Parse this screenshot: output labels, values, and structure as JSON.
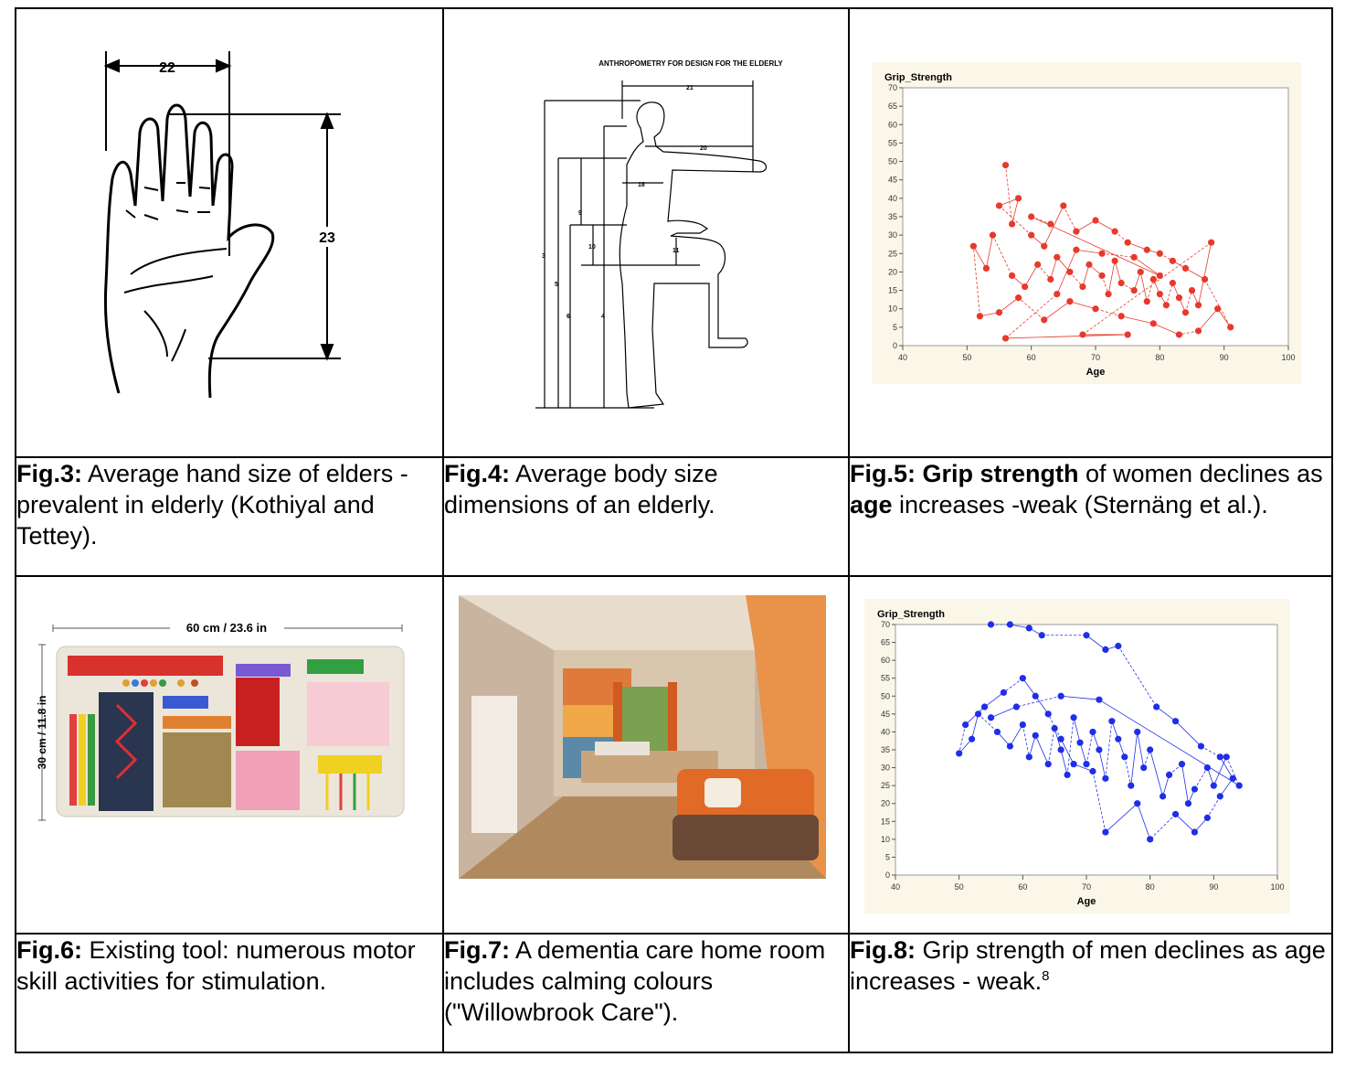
{
  "cells": {
    "fig3": {
      "dim_width": "22",
      "dim_height": "23"
    },
    "fig4": {
      "title": "ANTHROPOMETRY FOR DESIGN FOR THE ELDERLY",
      "labels": [
        "21",
        "20",
        "18",
        "9",
        "10",
        "11",
        "3",
        "5",
        "6",
        "4"
      ]
    },
    "fig6": {
      "width_label": "60 cm / 23.6 in",
      "height_label": "30 cm / 11.8 in"
    }
  },
  "captions": {
    "fig3": {
      "lead": "Fig.3:",
      "text": " Average hand size of elders - prevalent in elderly (Kothiyal and Tettey)."
    },
    "fig4": {
      "lead": "Fig.4:",
      "text": " Average body size dimensions of an elderly."
    },
    "fig5": {
      "lead": "Fig.5: Grip strength",
      "mid1": " of women declines as ",
      "bold2": "age",
      "text": " increases -weak (Sternäng et al.)."
    },
    "fig6": {
      "lead": "Fig.6:",
      "text": " Existing tool: numerous motor skill activities for stimulation."
    },
    "fig7": {
      "lead": "Fig.7:",
      "text": " A dementia care home room includes calming colours (\"Willowbrook Care\")."
    },
    "fig8": {
      "lead": "Fig.8:",
      "text": " Grip strength of men declines as age increases - weak.",
      "sup": "8"
    }
  },
  "colors": {
    "women_series": "#e8392b",
    "men_series": "#1f2ee8",
    "chart_bg": "#faf7e9"
  },
  "chart_data": [
    {
      "type": "scatter",
      "ylabel": "Grip_Strength",
      "xlabel": "Age",
      "xlim": [
        40,
        100
      ],
      "ylim": [
        0,
        70
      ],
      "x_ticks": [
        40,
        50,
        60,
        70,
        80,
        90,
        100
      ],
      "y_ticks": [
        0,
        5,
        10,
        15,
        20,
        25,
        30,
        35,
        40,
        45,
        50,
        55,
        60,
        65,
        70
      ],
      "series": [
        {
          "values": [
            [
              56,
              49
            ],
            [
              57,
              33
            ],
            [
              58,
              40
            ],
            [
              55,
              38
            ],
            [
              60,
              30
            ],
            [
              62,
              27
            ],
            [
              65,
              38
            ],
            [
              67,
              31
            ],
            [
              70,
              34
            ],
            [
              73,
              31
            ],
            [
              75,
              28
            ],
            [
              78,
              26
            ],
            [
              80,
              25
            ],
            [
              82,
              23
            ],
            [
              84,
              21
            ],
            [
              87,
              18
            ],
            [
              91,
              5
            ],
            [
              89,
              10
            ],
            [
              86,
              4
            ],
            [
              83,
              3
            ],
            [
              79,
              6
            ],
            [
              74,
              8
            ],
            [
              70,
              10
            ],
            [
              66,
              12
            ],
            [
              62,
              7
            ],
            [
              58,
              13
            ],
            [
              55,
              9
            ],
            [
              52,
              8
            ],
            [
              51,
              27
            ],
            [
              53,
              21
            ],
            [
              54,
              30
            ],
            [
              57,
              19
            ],
            [
              59,
              16
            ],
            [
              61,
              22
            ],
            [
              63,
              18
            ],
            [
              64,
              24
            ],
            [
              66,
              20
            ],
            [
              68,
              16
            ],
            [
              69,
              22
            ],
            [
              71,
              19
            ],
            [
              72,
              14
            ],
            [
              73,
              23
            ],
            [
              74,
              17
            ],
            [
              76,
              15
            ],
            [
              77,
              20
            ],
            [
              78,
              12
            ],
            [
              79,
              18
            ],
            [
              80,
              14
            ],
            [
              81,
              11
            ],
            [
              82,
              17
            ],
            [
              83,
              13
            ],
            [
              84,
              9
            ],
            [
              85,
              15
            ],
            [
              86,
              11
            ],
            [
              88,
              28
            ],
            [
              68,
              3
            ],
            [
              75,
              3
            ],
            [
              56,
              2
            ],
            [
              64,
              14
            ],
            [
              67,
              26
            ],
            [
              71,
              25
            ],
            [
              76,
              24
            ],
            [
              80,
              19
            ],
            [
              60,
              35
            ],
            [
              63,
              33
            ]
          ]
        }
      ]
    },
    {
      "type": "scatter",
      "ylabel": "Grip_Strength",
      "xlabel": "Age",
      "xlim": [
        40,
        100
      ],
      "ylim": [
        0,
        70
      ],
      "x_ticks": [
        40,
        50,
        60,
        70,
        80,
        90,
        100
      ],
      "y_ticks": [
        0,
        5,
        10,
        15,
        20,
        25,
        30,
        35,
        40,
        45,
        50,
        55,
        60,
        65,
        70
      ],
      "series": [
        {
          "values": [
            [
              55,
              70
            ],
            [
              58,
              70
            ],
            [
              61,
              69
            ],
            [
              63,
              67
            ],
            [
              70,
              67
            ],
            [
              73,
              63
            ],
            [
              75,
              64
            ],
            [
              81,
              47
            ],
            [
              84,
              43
            ],
            [
              88,
              36
            ],
            [
              91,
              33
            ],
            [
              93,
              27
            ],
            [
              91,
              22
            ],
            [
              89,
              16
            ],
            [
              87,
              12
            ],
            [
              84,
              17
            ],
            [
              80,
              10
            ],
            [
              78,
              20
            ],
            [
              73,
              12
            ],
            [
              71,
              29
            ],
            [
              68,
              31
            ],
            [
              66,
              38
            ],
            [
              64,
              45
            ],
            [
              62,
              50
            ],
            [
              60,
              55
            ],
            [
              57,
              51
            ],
            [
              54,
              47
            ],
            [
              51,
              42
            ],
            [
              50,
              34
            ],
            [
              52,
              38
            ],
            [
              53,
              45
            ],
            [
              56,
              40
            ],
            [
              58,
              36
            ],
            [
              60,
              42
            ],
            [
              61,
              33
            ],
            [
              62,
              39
            ],
            [
              64,
              31
            ],
            [
              65,
              41
            ],
            [
              66,
              35
            ],
            [
              67,
              28
            ],
            [
              68,
              44
            ],
            [
              69,
              37
            ],
            [
              70,
              31
            ],
            [
              71,
              40
            ],
            [
              72,
              35
            ],
            [
              73,
              27
            ],
            [
              74,
              43
            ],
            [
              75,
              38
            ],
            [
              76,
              33
            ],
            [
              77,
              25
            ],
            [
              78,
              40
            ],
            [
              79,
              30
            ],
            [
              80,
              35
            ],
            [
              82,
              22
            ],
            [
              83,
              28
            ],
            [
              85,
              31
            ],
            [
              86,
              20
            ],
            [
              87,
              24
            ],
            [
              89,
              30
            ],
            [
              90,
              25
            ],
            [
              92,
              33
            ],
            [
              94,
              25
            ],
            [
              72,
              49
            ],
            [
              66,
              50
            ],
            [
              59,
              47
            ],
            [
              55,
              44
            ]
          ]
        }
      ]
    }
  ]
}
